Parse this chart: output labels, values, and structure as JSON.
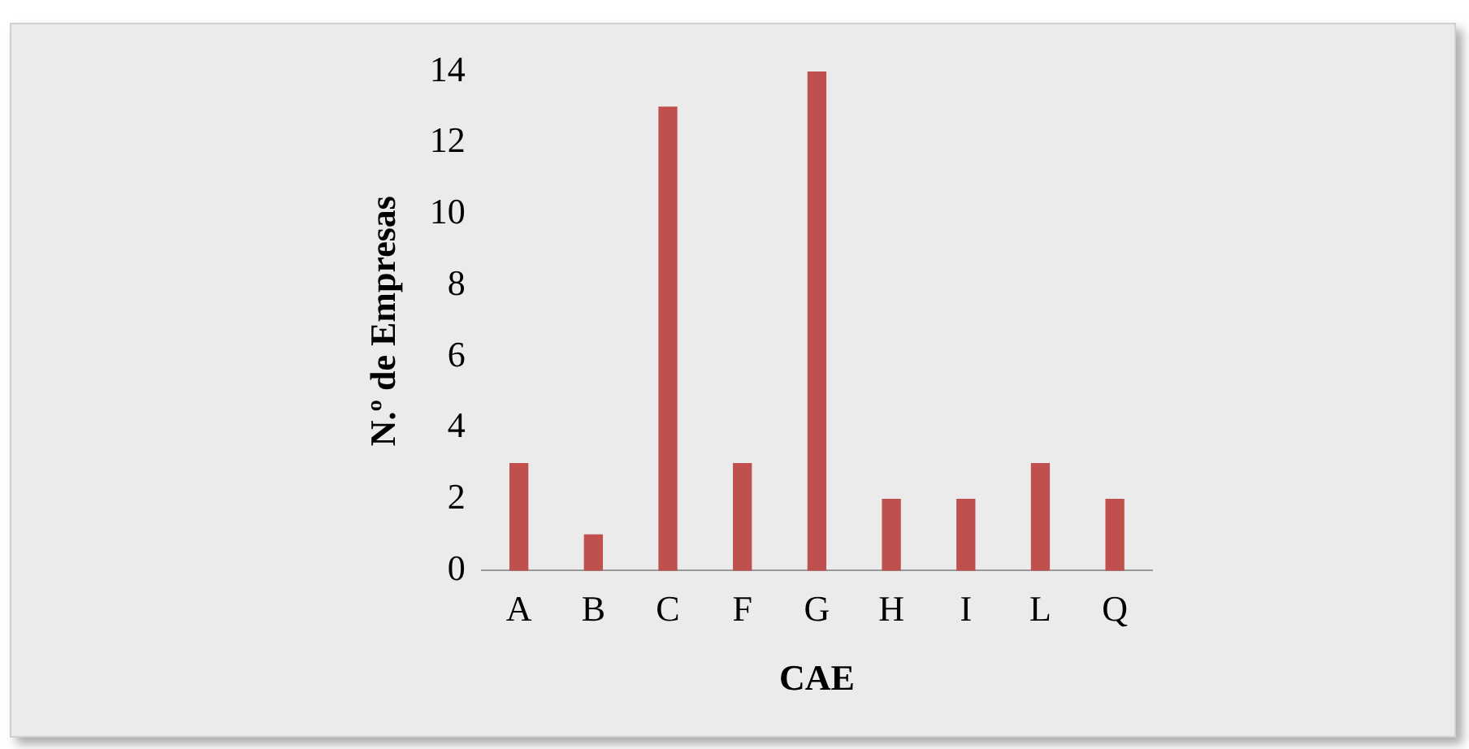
{
  "chart_data": {
    "type": "bar",
    "xlabel": "CAE",
    "ylabel": "N.º de Empresas",
    "categories": [
      "A",
      "B",
      "C",
      "F",
      "G",
      "H",
      "I",
      "L",
      "Q"
    ],
    "values": [
      3,
      1,
      13,
      3,
      14,
      2,
      2,
      3,
      2
    ],
    "color": "#c0504d",
    "ylim": [
      0,
      14
    ],
    "yticks": [
      0,
      2,
      4,
      6,
      8,
      10,
      12,
      14
    ],
    "grid": false,
    "legend": false
  }
}
